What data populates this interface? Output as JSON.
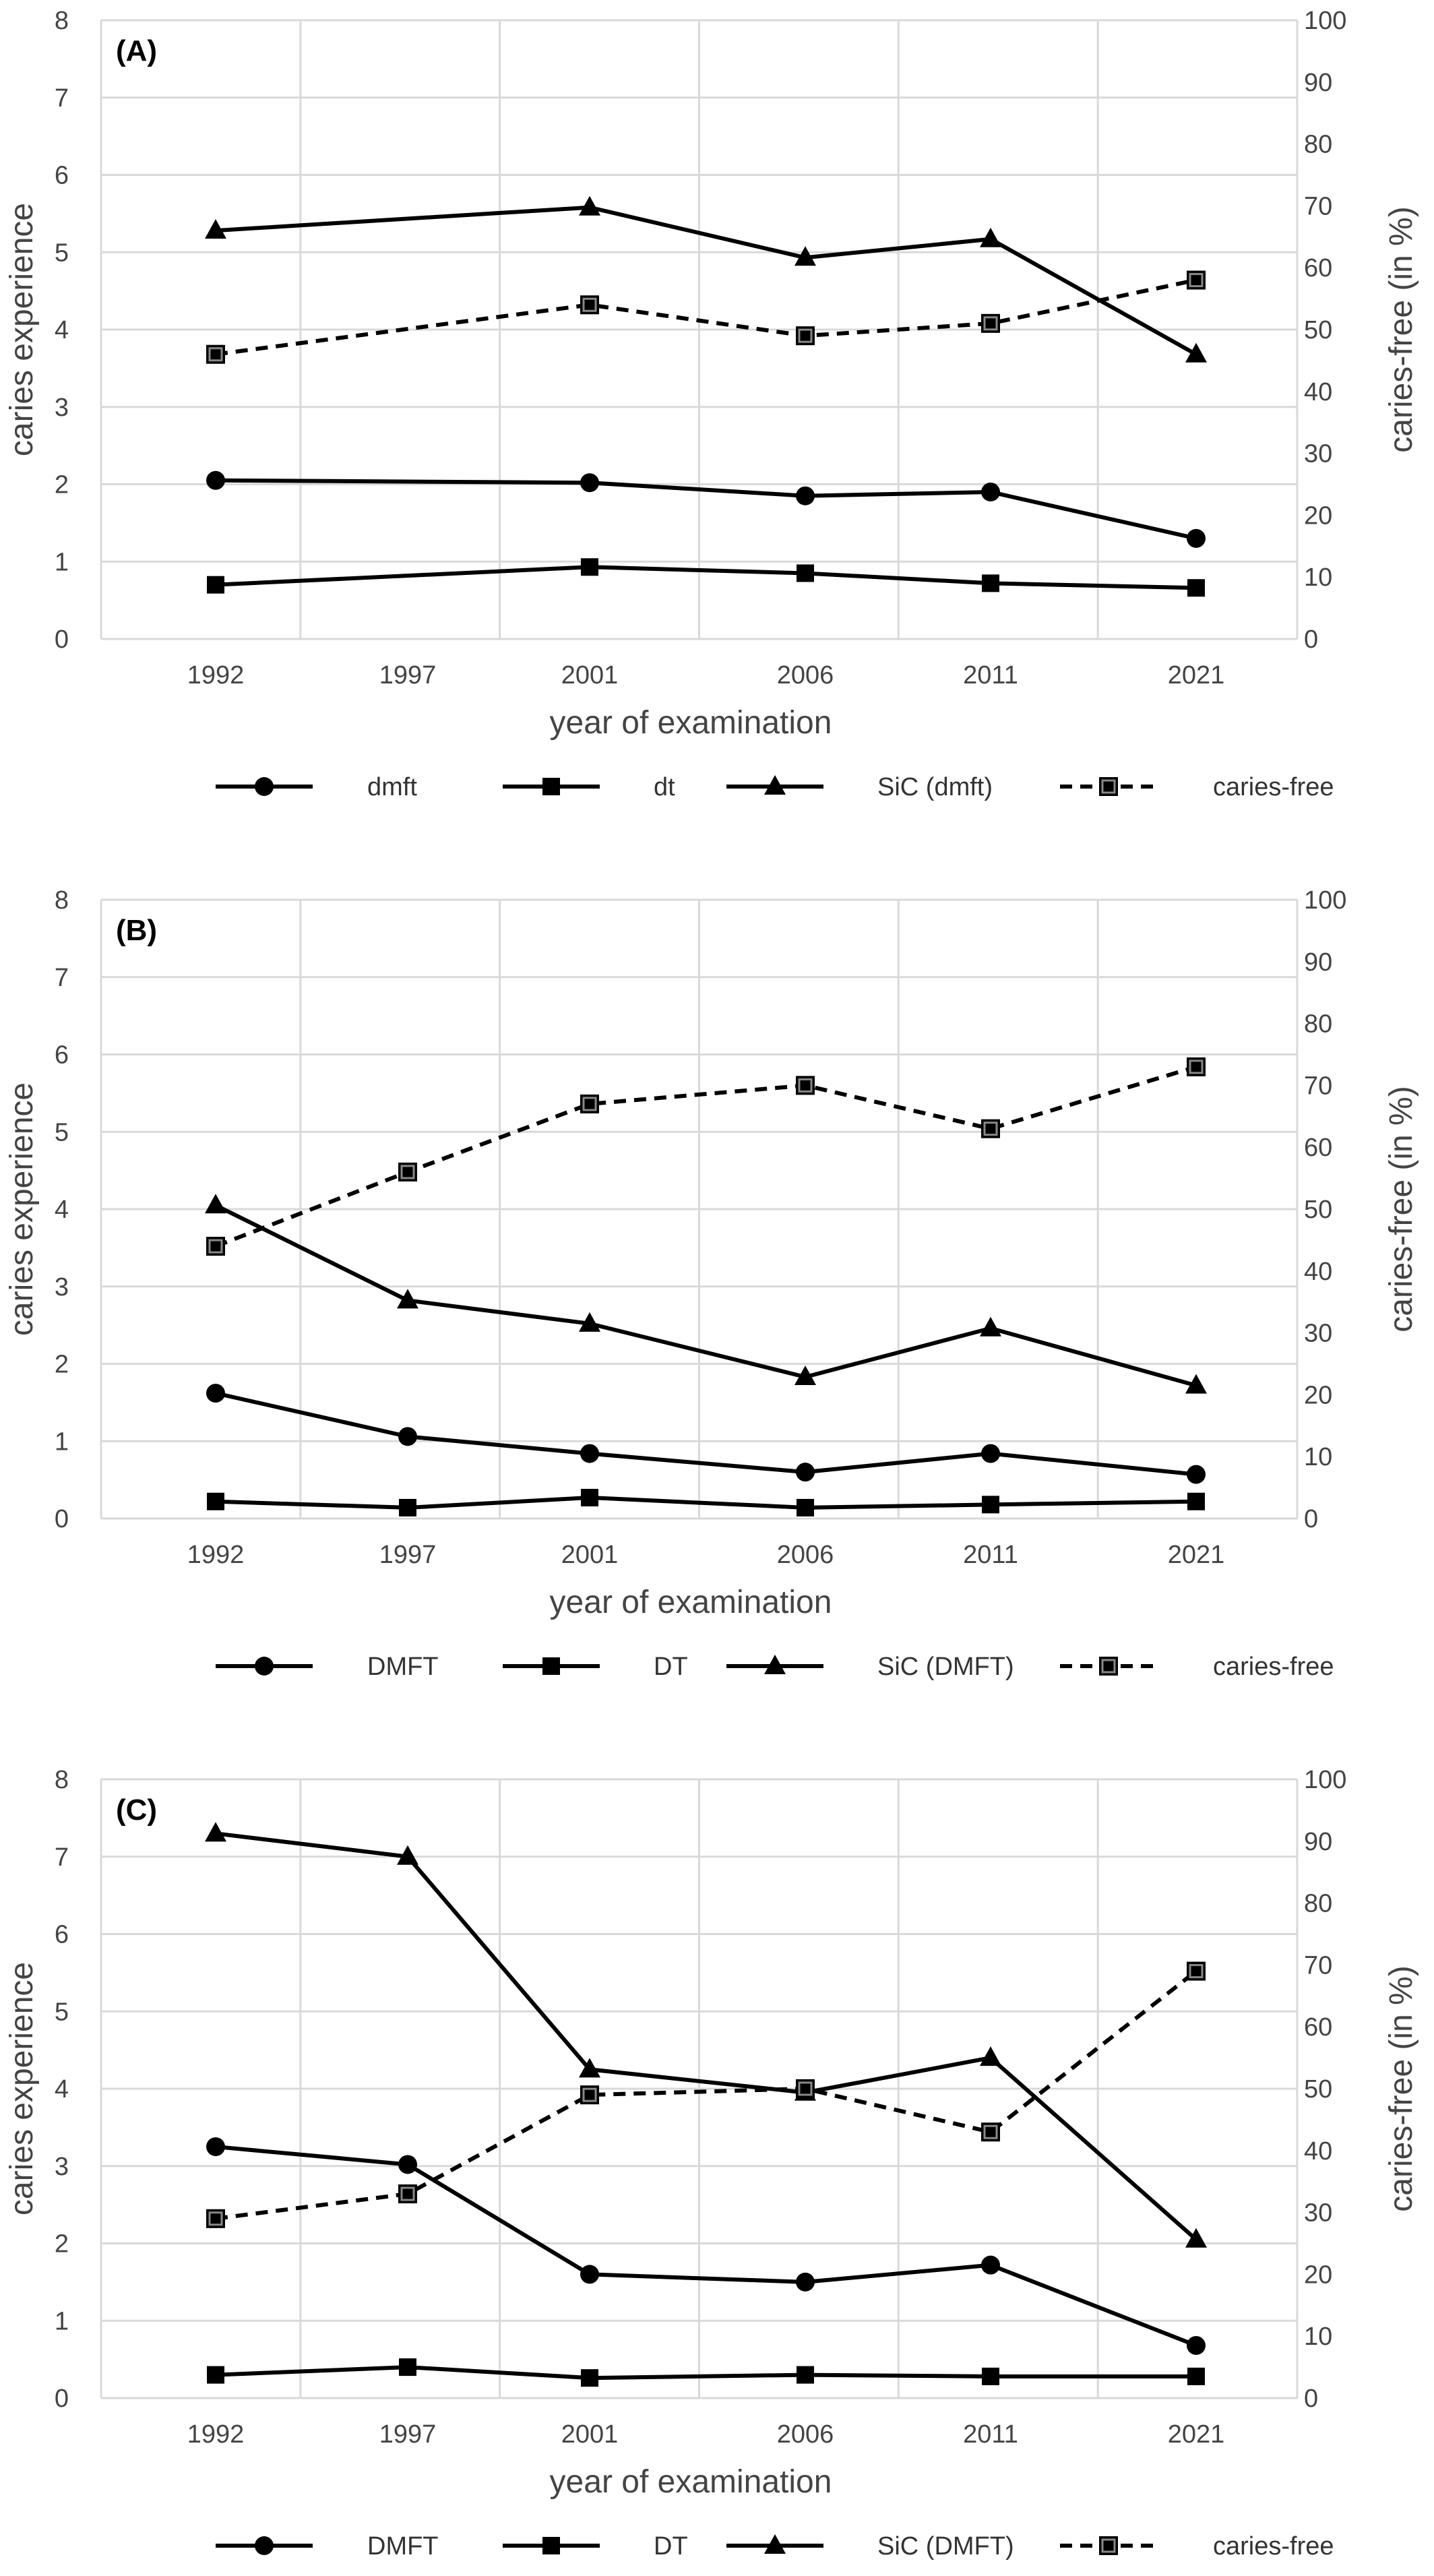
{
  "chart_data": [
    {
      "type": "line",
      "panel_label": "(A)",
      "categories": [
        "1992",
        "1997",
        "2001",
        "2006",
        "2011",
        "2021"
      ],
      "xlabel": "year of examination",
      "ylabel": "caries experience",
      "ylabel_right": "caries-free (in %)",
      "ylim": [
        0,
        8
      ],
      "ylim_right": [
        0,
        100
      ],
      "y_ticks": [
        0,
        1,
        2,
        3,
        4,
        5,
        6,
        7,
        8
      ],
      "y_ticks_right": [
        0,
        10,
        20,
        30,
        40,
        50,
        60,
        70,
        80,
        90,
        100
      ],
      "grid": true,
      "legend_position": "bottom",
      "series": [
        {
          "name": "dmft",
          "marker": "circle",
          "axis": "left",
          "dashed": false,
          "values": [
            2.05,
            null,
            2.02,
            1.85,
            1.9,
            1.3
          ]
        },
        {
          "name": "dt",
          "marker": "square",
          "axis": "left",
          "dashed": false,
          "values": [
            0.7,
            null,
            0.93,
            0.85,
            0.72,
            0.66
          ]
        },
        {
          "name": "SiC (dmft)",
          "marker": "triangle",
          "axis": "left",
          "dashed": false,
          "values": [
            5.28,
            null,
            5.58,
            4.93,
            5.17,
            3.68
          ]
        },
        {
          "name": "caries-free",
          "marker": "square-open",
          "axis": "right",
          "dashed": true,
          "values": [
            46,
            null,
            54,
            49,
            51,
            58
          ]
        }
      ]
    },
    {
      "type": "line",
      "panel_label": "(B)",
      "categories": [
        "1992",
        "1997",
        "2001",
        "2006",
        "2011",
        "2021"
      ],
      "xlabel": "year of examination",
      "ylabel": "caries experience",
      "ylabel_right": "caries-free (in %)",
      "ylim": [
        0,
        8
      ],
      "ylim_right": [
        0,
        100
      ],
      "y_ticks": [
        0,
        1,
        2,
        3,
        4,
        5,
        6,
        7,
        8
      ],
      "y_ticks_right": [
        0,
        10,
        20,
        30,
        40,
        50,
        60,
        70,
        80,
        90,
        100
      ],
      "grid": true,
      "legend_position": "bottom",
      "series": [
        {
          "name": "DMFT",
          "marker": "circle",
          "axis": "left",
          "dashed": false,
          "values": [
            1.62,
            1.06,
            0.84,
            0.6,
            0.84,
            0.57
          ]
        },
        {
          "name": "DT",
          "marker": "square",
          "axis": "left",
          "dashed": false,
          "values": [
            0.22,
            0.14,
            0.27,
            0.14,
            0.18,
            0.22
          ]
        },
        {
          "name": "SiC (DMFT)",
          "marker": "triangle",
          "axis": "left",
          "dashed": false,
          "values": [
            4.05,
            2.82,
            2.52,
            1.83,
            2.46,
            1.72
          ]
        },
        {
          "name": "caries-free",
          "marker": "square-open",
          "axis": "right",
          "dashed": true,
          "values": [
            44,
            56,
            67,
            70,
            63,
            73
          ]
        }
      ]
    },
    {
      "type": "line",
      "panel_label": "(C)",
      "categories": [
        "1992",
        "1997",
        "2001",
        "2006",
        "2011",
        "2021"
      ],
      "xlabel": "year of examination",
      "ylabel": "caries experience",
      "ylabel_right": "caries-free (in %)",
      "ylim": [
        0,
        8
      ],
      "ylim_right": [
        0,
        100
      ],
      "y_ticks": [
        0,
        1,
        2,
        3,
        4,
        5,
        6,
        7,
        8
      ],
      "y_ticks_right": [
        0,
        10,
        20,
        30,
        40,
        50,
        60,
        70,
        80,
        90,
        100
      ],
      "grid": true,
      "legend_position": "bottom",
      "series": [
        {
          "name": "DMFT",
          "marker": "circle",
          "axis": "left",
          "dashed": false,
          "values": [
            3.25,
            3.02,
            1.6,
            1.5,
            1.72,
            0.68
          ]
        },
        {
          "name": "DT",
          "marker": "square",
          "axis": "left",
          "dashed": false,
          "values": [
            0.3,
            0.4,
            0.26,
            0.3,
            0.28,
            0.28
          ]
        },
        {
          "name": "SiC (DMFT)",
          "marker": "triangle",
          "axis": "left",
          "dashed": false,
          "values": [
            7.3,
            7.0,
            4.25,
            3.95,
            4.4,
            2.05
          ]
        },
        {
          "name": "caries-free",
          "marker": "square-open",
          "axis": "right",
          "dashed": true,
          "values": [
            29,
            33,
            49,
            50,
            43,
            69
          ]
        }
      ]
    }
  ]
}
